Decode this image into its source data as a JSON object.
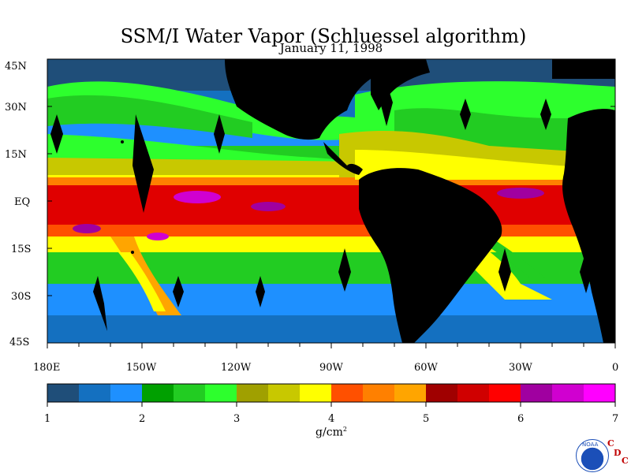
{
  "title": "SSM/I Water Vapor (Schluessel algorithm)",
  "date": "January 11, 1998",
  "map": {
    "lat_labels": [
      "45N",
      "30N",
      "15N",
      "EQ",
      "15S",
      "30S",
      "45S"
    ],
    "lon_labels": [
      "180E",
      "150W",
      "120W",
      "90W",
      "60W",
      "30W",
      "0"
    ]
  },
  "colorbar": {
    "colors": [
      "#1f4e79",
      "#1470c0",
      "#1e90ff",
      "#00a000",
      "#22cc22",
      "#2dff2d",
      "#a0a000",
      "#c8c800",
      "#ffff00",
      "#ff5000",
      "#ff8000",
      "#ffa500",
      "#a00000",
      "#d00000",
      "#ff0000",
      "#a000a0",
      "#d000d0",
      "#ff00ff"
    ],
    "tick_labels": [
      "1",
      "2",
      "3",
      "4",
      "5",
      "6",
      "7"
    ],
    "unit": "g/cm",
    "unit_sup": "2"
  },
  "logo": {
    "noaa_text": "NOAA",
    "cdc_letters": [
      "C",
      "D",
      "C"
    ]
  }
}
